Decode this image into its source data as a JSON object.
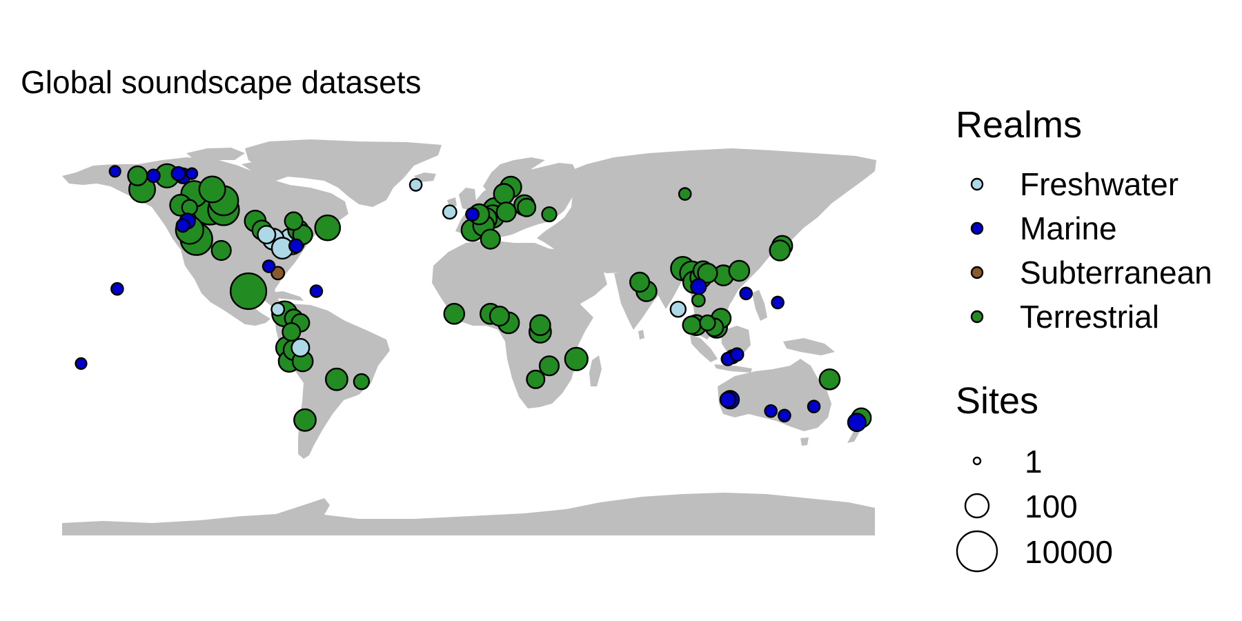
{
  "title": "Global soundscape datasets",
  "legend": {
    "realm_title": "Realms",
    "realms": [
      {
        "name": "Freshwater",
        "color": "#add8e6"
      },
      {
        "name": "Marine",
        "color": "#0000cd"
      },
      {
        "name": "Subterranean",
        "color": "#8b5a2b"
      },
      {
        "name": "Terrestrial",
        "color": "#228b22"
      }
    ],
    "size_title": "Sites",
    "sizes": [
      {
        "label": "1",
        "value": 1
      },
      {
        "label": "100",
        "value": 100
      },
      {
        "label": "10000",
        "value": 10000
      }
    ]
  },
  "colors": {
    "land": "#bebebe",
    "outline": "#000000",
    "background": "#ffffff"
  },
  "map": {
    "projection": "equirectangular",
    "lon_range": [
      -180,
      180
    ],
    "lat_range": [
      -90,
      90
    ],
    "points": [
      {
        "lon": -156,
        "lat": 71,
        "realm": "Marine",
        "sites": 3
      },
      {
        "lon": -146,
        "lat": 69,
        "realm": "Terrestrial",
        "sites": 30
      },
      {
        "lon": -144,
        "lat": 63,
        "realm": "Terrestrial",
        "sites": 200
      },
      {
        "lon": -139,
        "lat": 69,
        "realm": "Marine",
        "sites": 5
      },
      {
        "lon": -133,
        "lat": 69,
        "realm": "Terrestrial",
        "sites": 100
      },
      {
        "lon": -128,
        "lat": 70,
        "realm": "Marine",
        "sites": 6
      },
      {
        "lon": -126,
        "lat": 69,
        "realm": "Marine",
        "sites": 10
      },
      {
        "lon": -122,
        "lat": 70,
        "realm": "Marine",
        "sites": 3
      },
      {
        "lon": -127,
        "lat": 56,
        "realm": "Terrestrial",
        "sites": 50
      },
      {
        "lon": -123,
        "lat": 55,
        "realm": "Terrestrial",
        "sites": 10
      },
      {
        "lon": -121,
        "lat": 61,
        "realm": "Terrestrial",
        "sites": 200
      },
      {
        "lon": -113,
        "lat": 63,
        "realm": "Terrestrial",
        "sites": 200
      },
      {
        "lon": -114,
        "lat": 55,
        "realm": "Terrestrial",
        "sites": 2000
      },
      {
        "lon": -108,
        "lat": 58,
        "realm": "Terrestrial",
        "sites": 500
      },
      {
        "lon": -108,
        "lat": 54,
        "realm": "Terrestrial",
        "sites": 800
      },
      {
        "lon": -124,
        "lat": 49,
        "realm": "Marine",
        "sites": 10
      },
      {
        "lon": -126,
        "lat": 47,
        "realm": "Marine",
        "sites": 5
      },
      {
        "lon": -123,
        "lat": 45,
        "realm": "Terrestrial",
        "sites": 300
      },
      {
        "lon": -120,
        "lat": 41,
        "realm": "Terrestrial",
        "sites": 1000
      },
      {
        "lon": -109,
        "lat": 36,
        "realm": "Terrestrial",
        "sites": 30
      },
      {
        "lon": -94,
        "lat": 49,
        "realm": "Terrestrial",
        "sites": 50
      },
      {
        "lon": -91,
        "lat": 45,
        "realm": "Terrestrial",
        "sites": 30
      },
      {
        "lon": -89,
        "lat": 43,
        "realm": "Freshwater",
        "sites": 20
      },
      {
        "lon": -86,
        "lat": 41,
        "realm": "Freshwater",
        "sites": 50
      },
      {
        "lon": -82,
        "lat": 37,
        "realm": "Freshwater",
        "sites": 50
      },
      {
        "lon": -78,
        "lat": 40,
        "realm": "Freshwater",
        "sites": 200
      },
      {
        "lon": -76,
        "lat": 38,
        "realm": "Marine",
        "sites": 6
      },
      {
        "lon": -73,
        "lat": 43,
        "realm": "Terrestrial",
        "sites": 30
      },
      {
        "lon": -77,
        "lat": 49,
        "realm": "Terrestrial",
        "sites": 20
      },
      {
        "lon": -75,
        "lat": 45,
        "realm": "Terrestrial",
        "sites": 40
      },
      {
        "lon": -62,
        "lat": 46,
        "realm": "Terrestrial",
        "sites": 150
      },
      {
        "lon": -84,
        "lat": 26,
        "realm": "Subterranean",
        "sites": 5
      },
      {
        "lon": -88,
        "lat": 29,
        "realm": "Marine",
        "sites": 4
      },
      {
        "lon": -155,
        "lat": 19,
        "realm": "Marine",
        "sites": 4
      },
      {
        "lon": -67,
        "lat": 18,
        "realm": "Marine",
        "sites": 4
      },
      {
        "lon": -171,
        "lat": -14,
        "realm": "Marine",
        "sites": 3
      },
      {
        "lon": -97,
        "lat": 18,
        "realm": "Terrestrial",
        "sites": 3000
      },
      {
        "lon": -84,
        "lat": 10,
        "realm": "Freshwater",
        "sites": 5
      },
      {
        "lon": -81,
        "lat": 8,
        "realm": "Terrestrial",
        "sites": 150
      },
      {
        "lon": -77,
        "lat": 6,
        "realm": "Terrestrial",
        "sites": 20
      },
      {
        "lon": -74,
        "lat": 4,
        "realm": "Terrestrial",
        "sites": 20
      },
      {
        "lon": -78,
        "lat": 0,
        "realm": "Terrestrial",
        "sites": 20
      },
      {
        "lon": -80,
        "lat": -7,
        "realm": "Terrestrial",
        "sites": 60
      },
      {
        "lon": -77,
        "lat": -8,
        "realm": "Terrestrial",
        "sites": 40
      },
      {
        "lon": -74,
        "lat": -7,
        "realm": "Freshwater",
        "sites": 20
      },
      {
        "lon": -79,
        "lat": -13,
        "realm": "Terrestrial",
        "sites": 50
      },
      {
        "lon": -73,
        "lat": -13,
        "realm": "Terrestrial",
        "sites": 40
      },
      {
        "lon": -58,
        "lat": -21,
        "realm": "Terrestrial",
        "sites": 60
      },
      {
        "lon": -47,
        "lat": -22,
        "realm": "Terrestrial",
        "sites": 10
      },
      {
        "lon": -72,
        "lat": -39,
        "realm": "Terrestrial",
        "sites": 60
      },
      {
        "lon": -23,
        "lat": 65,
        "realm": "Freshwater",
        "sites": 4
      },
      {
        "lon": -8,
        "lat": 53,
        "realm": "Freshwater",
        "sites": 6
      },
      {
        "lon": 2,
        "lat": 52,
        "realm": "Marine",
        "sites": 5
      },
      {
        "lon": 5,
        "lat": 52,
        "realm": "Terrestrial",
        "sites": 40
      },
      {
        "lon": 8,
        "lat": 50,
        "realm": "Terrestrial",
        "sites": 60
      },
      {
        "lon": 11,
        "lat": 51,
        "realm": "Terrestrial",
        "sites": 80
      },
      {
        "lon": 7,
        "lat": 47,
        "realm": "Terrestrial",
        "sites": 50
      },
      {
        "lon": 2,
        "lat": 45,
        "realm": "Terrestrial",
        "sites": 60
      },
      {
        "lon": 12,
        "lat": 54,
        "realm": "Terrestrial",
        "sites": 100
      },
      {
        "lon": 17,
        "lat": 53,
        "realm": "Terrestrial",
        "sites": 30
      },
      {
        "lon": 16,
        "lat": 61,
        "realm": "Terrestrial",
        "sites": 40
      },
      {
        "lon": 19,
        "lat": 64,
        "realm": "Terrestrial",
        "sites": 50
      },
      {
        "lon": 25,
        "lat": 56,
        "realm": "Terrestrial",
        "sites": 40
      },
      {
        "lon": 26,
        "lat": 55,
        "realm": "Terrestrial",
        "sites": 20
      },
      {
        "lon": 36,
        "lat": 52,
        "realm": "Terrestrial",
        "sites": 8
      },
      {
        "lon": 10,
        "lat": 41,
        "realm": "Terrestrial",
        "sites": 30
      },
      {
        "lon": 96,
        "lat": 61,
        "realm": "Terrestrial",
        "sites": 4
      },
      {
        "lon": -6,
        "lat": 8,
        "realm": "Terrestrial",
        "sites": 40
      },
      {
        "lon": 10,
        "lat": 8,
        "realm": "Terrestrial",
        "sites": 40
      },
      {
        "lon": 14,
        "lat": 7,
        "realm": "Terrestrial",
        "sites": 30
      },
      {
        "lon": 18,
        "lat": 4,
        "realm": "Terrestrial",
        "sites": 50
      },
      {
        "lon": 32,
        "lat": 3,
        "realm": "Terrestrial",
        "sites": 40
      },
      {
        "lon": 32,
        "lat": 0,
        "realm": "Terrestrial",
        "sites": 60
      },
      {
        "lon": 36,
        "lat": -15,
        "realm": "Terrestrial",
        "sites": 30
      },
      {
        "lon": 48,
        "lat": -12,
        "realm": "Terrestrial",
        "sites": 80
      },
      {
        "lon": 30,
        "lat": -21,
        "realm": "Terrestrial",
        "sites": 20
      },
      {
        "lon": 76,
        "lat": 22,
        "realm": "Terrestrial",
        "sites": 30
      },
      {
        "lon": 79,
        "lat": 18,
        "realm": "Terrestrial",
        "sites": 40
      },
      {
        "lon": 95,
        "lat": 28,
        "realm": "Terrestrial",
        "sites": 100
      },
      {
        "lon": 93,
        "lat": 10,
        "realm": "Freshwater",
        "sites": 10
      },
      {
        "lon": 99,
        "lat": 26,
        "realm": "Terrestrial",
        "sites": 100
      },
      {
        "lon": 100,
        "lat": 22,
        "realm": "Terrestrial",
        "sites": 60
      },
      {
        "lon": 103,
        "lat": 24,
        "realm": "Terrestrial",
        "sites": 50
      },
      {
        "lon": 104,
        "lat": 27,
        "realm": "Terrestrial",
        "sites": 30
      },
      {
        "lon": 106,
        "lat": 26,
        "realm": "Terrestrial",
        "sites": 30
      },
      {
        "lon": 102,
        "lat": 20,
        "realm": "Marine",
        "sites": 10
      },
      {
        "lon": 102,
        "lat": 14,
        "realm": "Terrestrial",
        "sites": 5
      },
      {
        "lon": 113,
        "lat": 25,
        "realm": "Terrestrial",
        "sites": 40
      },
      {
        "lon": 120,
        "lat": 27,
        "realm": "Terrestrial",
        "sites": 40
      },
      {
        "lon": 123,
        "lat": 17,
        "realm": "Marine",
        "sites": 4
      },
      {
        "lon": 101,
        "lat": 3,
        "realm": "Terrestrial",
        "sites": 40
      },
      {
        "lon": 99,
        "lat": 3,
        "realm": "Terrestrial",
        "sites": 20
      },
      {
        "lon": 106,
        "lat": 4,
        "realm": "Terrestrial",
        "sites": 10
      },
      {
        "lon": 109,
        "lat": 2,
        "realm": "Terrestrial",
        "sites": 20
      },
      {
        "lon": 112,
        "lat": 6,
        "realm": "Terrestrial",
        "sites": 30
      },
      {
        "lon": 110,
        "lat": 2,
        "realm": "Terrestrial",
        "sites": 50
      },
      {
        "lon": 137,
        "lat": 13,
        "realm": "Marine",
        "sites": 4
      },
      {
        "lon": 139,
        "lat": 38,
        "realm": "Terrestrial",
        "sites": 40
      },
      {
        "lon": 138,
        "lat": 36,
        "realm": "Terrestrial",
        "sites": 40
      },
      {
        "lon": 115,
        "lat": -12,
        "realm": "Marine",
        "sites": 5
      },
      {
        "lon": 117,
        "lat": -11,
        "realm": "Marine",
        "sites": 6
      },
      {
        "lon": 119,
        "lat": -10,
        "realm": "Marine",
        "sites": 5
      },
      {
        "lon": 115,
        "lat": -30,
        "realm": "Marine",
        "sites": 10
      },
      {
        "lon": 116,
        "lat": -30,
        "realm": "Marine",
        "sites": 20
      },
      {
        "lon": 134,
        "lat": -35,
        "realm": "Marine",
        "sites": 4
      },
      {
        "lon": 140,
        "lat": -37,
        "realm": "Marine",
        "sites": 4
      },
      {
        "lon": 153,
        "lat": -33,
        "realm": "Marine",
        "sites": 4
      },
      {
        "lon": 160,
        "lat": -21,
        "realm": "Terrestrial",
        "sites": 40
      },
      {
        "lon": 174,
        "lat": -38,
        "realm": "Terrestrial",
        "sites": 30
      },
      {
        "lon": 172,
        "lat": -40,
        "realm": "Marine",
        "sites": 20
      }
    ]
  }
}
